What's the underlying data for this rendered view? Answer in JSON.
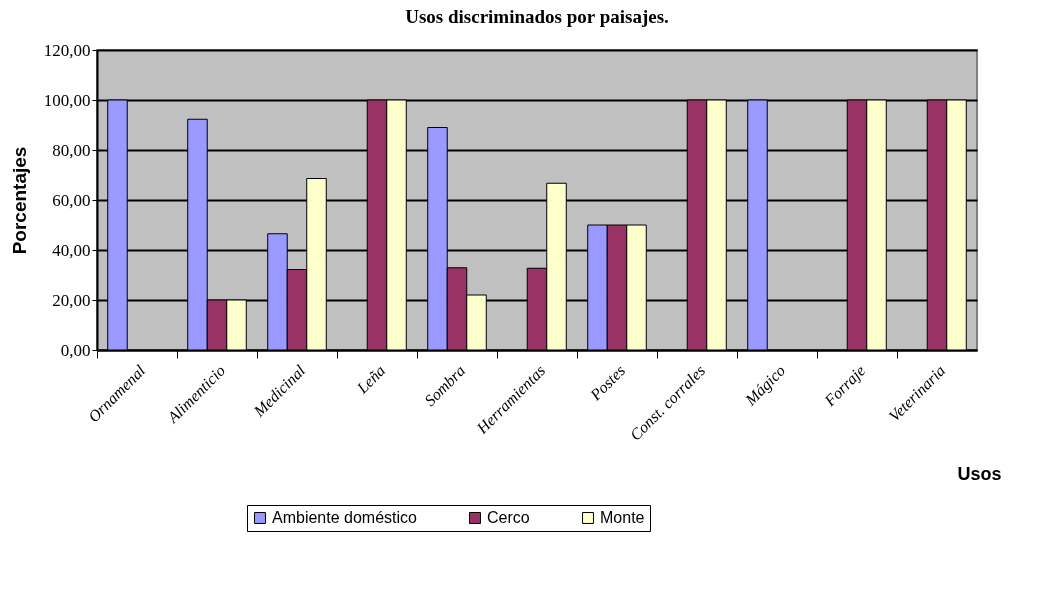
{
  "chart_data": {
    "type": "bar",
    "title": "Usos discriminados por paisajes.",
    "xlabel": "Usos",
    "ylabel": "Porcentajes",
    "categories": [
      "Ornamenal",
      "Alimenticio",
      "Medicinal",
      "Leña",
      "Sombra",
      "Herramientas",
      "Postes",
      "Const. corrales",
      "Mágico",
      "Forraje",
      "Veterinaria"
    ],
    "series": [
      {
        "name": "Ambiente doméstico",
        "color": "#9999ff",
        "values": [
          100,
          92.3,
          46.5,
          null,
          89,
          null,
          50,
          null,
          100,
          null,
          null
        ]
      },
      {
        "name": "Cerco",
        "color": "#993366",
        "values": [
          null,
          20,
          32.2,
          100,
          32.9,
          32.7,
          50,
          100,
          null,
          100,
          100
        ]
      },
      {
        "name": "Monte",
        "color": "#ffffcc",
        "values": [
          null,
          20,
          68.6,
          100,
          22,
          66.7,
          50,
          100,
          null,
          100,
          100
        ]
      }
    ],
    "ylim": [
      0,
      120
    ],
    "yticks": [
      {
        "value": 0,
        "label": "0,00"
      },
      {
        "value": 20,
        "label": "20,00"
      },
      {
        "value": 40,
        "label": "40,00"
      },
      {
        "value": 60,
        "label": "60,00"
      },
      {
        "value": 80,
        "label": "80,00"
      },
      {
        "value": 100,
        "label": "100,00"
      },
      {
        "value": 120,
        "label": "120,00"
      }
    ],
    "grid": "y",
    "legend": "bottom"
  }
}
